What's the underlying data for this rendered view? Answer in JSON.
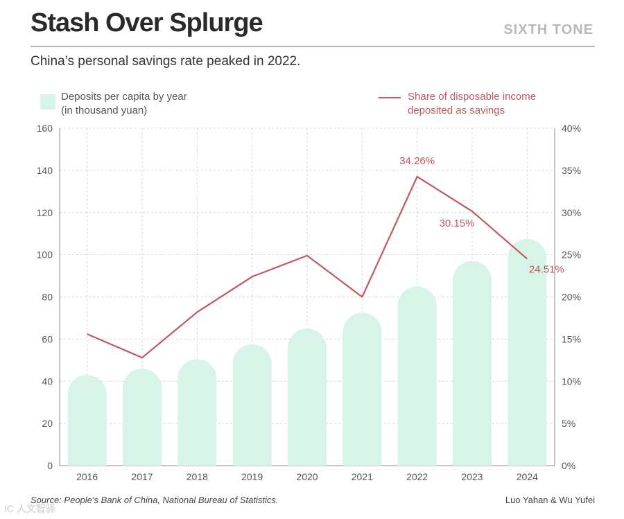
{
  "header": {
    "title": "Stash Over Splurge",
    "brand": "SIXTH TONE",
    "subtitle": "China’s personal savings rate peaked in 2022."
  },
  "legend": {
    "bars_line1": "Deposits per capita by year",
    "bars_line2": "(in thousand yuan)",
    "line_line1": "Share of disposable income",
    "line_line2": "deposited as savings"
  },
  "footer": {
    "source": "Source: People’s Bank of China, National Bureau of Statistics.",
    "credit": "Luo Yahan & Wu Yufei",
    "watermark": "IC 人文智驿"
  },
  "colors": {
    "bar": "#d8f3e7",
    "line": "#c2575d",
    "grid": "#d6d6d6",
    "axis_text": "#555555"
  },
  "chart_data": {
    "type": "bar",
    "categories": [
      "2016",
      "2017",
      "2018",
      "2019",
      "2020",
      "2021",
      "2022",
      "2023",
      "2024"
    ],
    "series": [
      {
        "name": "Deposits per capita by year (in thousand yuan)",
        "type": "bar",
        "axis": "left",
        "values": [
          43,
          46,
          50.5,
          57.5,
          65,
          72.5,
          85,
          97,
          107.5
        ]
      },
      {
        "name": "Share of disposable income deposited as savings",
        "type": "line",
        "axis": "right",
        "values": [
          15.6,
          12.8,
          18.2,
          22.4,
          24.9,
          20.0,
          34.26,
          30.15,
          24.51
        ],
        "data_labels": [
          {
            "index": 6,
            "text": "34.26%"
          },
          {
            "index": 7,
            "text": "30.15%"
          },
          {
            "index": 8,
            "text": "24.51%"
          }
        ]
      }
    ],
    "y_left": {
      "min": 0,
      "max": 160,
      "ticks": [
        0,
        20,
        40,
        60,
        80,
        100,
        120,
        140,
        160
      ]
    },
    "y_right": {
      "min": 0,
      "max": 40,
      "ticks": [
        "0%",
        "5%",
        "10%",
        "15%",
        "20%",
        "25%",
        "30%",
        "35%",
        "40%"
      ]
    },
    "grid": true,
    "legend_position": "top"
  }
}
